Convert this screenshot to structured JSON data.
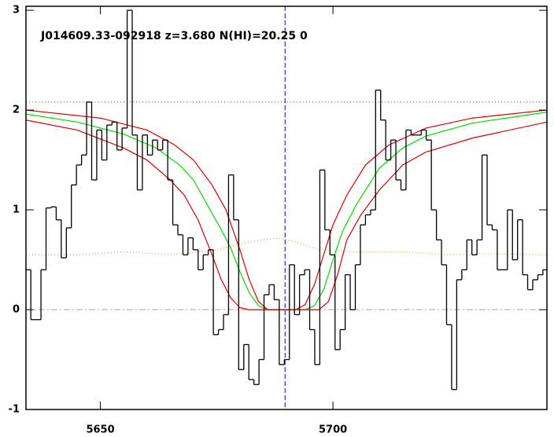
{
  "chart_data": {
    "type": "step",
    "title": "J014609.33-092918 z=3.680 N(HI)=20.25 0",
    "xlim": [
      5634,
      5746
    ],
    "ylim": [
      -1,
      3.04
    ],
    "xticks": [
      5650,
      5700
    ],
    "yticks": [
      -1,
      0,
      1,
      2,
      3
    ],
    "x": [
      5634.5,
      5635.59,
      5636.68,
      5637.77,
      5638.86,
      5639.95,
      5641.04,
      5642.13,
      5643.22,
      5644.31,
      5645.4,
      5646.49,
      5647.58,
      5648.67,
      5649.76,
      5650.85,
      5651.94,
      5653.03,
      5654.12,
      5655.21,
      5656.3,
      5657.39,
      5658.48,
      5659.57,
      5660.66,
      5661.75,
      5662.84,
      5663.93,
      5665.02,
      5666.11,
      5667.2,
      5668.29,
      5669.38,
      5670.47,
      5671.56,
      5672.65,
      5673.74,
      5674.83,
      5675.92,
      5677.01,
      5678.1,
      5679.19,
      5680.28,
      5681.37,
      5682.46,
      5683.55,
      5684.64,
      5685.73,
      5686.82,
      5687.91,
      5689.0,
      5690.09,
      5691.18,
      5692.27,
      5693.36,
      5694.45,
      5695.54,
      5696.63,
      5697.72,
      5698.81,
      5699.9,
      5700.99,
      5702.08,
      5703.17,
      5704.26,
      5705.35,
      5706.44,
      5707.53,
      5708.62,
      5709.71,
      5710.8,
      5711.89,
      5712.98,
      5714.07,
      5715.16,
      5716.25,
      5717.34,
      5718.43,
      5719.52,
      5720.61,
      5721.7,
      5722.79,
      5723.88,
      5724.97,
      5726.06,
      5727.15,
      5728.24,
      5729.33,
      5730.42,
      5731.51,
      5732.6,
      5733.69,
      5734.78,
      5735.87,
      5736.96,
      5738.05,
      5739.14,
      5740.23,
      5741.32,
      5742.41,
      5743.5,
      5744.59,
      5745.68
    ],
    "values": [
      0.4,
      -0.1,
      -0.1,
      0.4,
      1.02,
      1.03,
      0.9,
      0.52,
      0.82,
      1.25,
      1.45,
      1.55,
      2.08,
      1.3,
      1.8,
      1.5,
      1.85,
      1.88,
      1.6,
      1.82,
      3.0,
      1.75,
      1.2,
      1.75,
      1.55,
      1.7,
      1.6,
      1.7,
      1.3,
      0.85,
      0.75,
      0.55,
      0.72,
      0.6,
      0.4,
      0.55,
      0.6,
      -0.25,
      -0.2,
      -0.05,
      1.35,
      0.9,
      -0.6,
      -0.35,
      -0.7,
      -0.75,
      -0.5,
      0.15,
      0.25,
      0.1,
      -0.55,
      -0.5,
      0.45,
      -0.05,
      0.35,
      0.4,
      -0.2,
      -0.55,
      1.4,
      0.8,
      0.55,
      -0.4,
      -0.2,
      0.35,
      0.0,
      0.45,
      0.85,
      0.95,
      1.0,
      2.2,
      1.9,
      1.5,
      1.7,
      1.3,
      1.2,
      1.8,
      1.75,
      1.75,
      1.8,
      1.7,
      1.0,
      0.7,
      0.45,
      -0.15,
      -0.8,
      0.3,
      0.4,
      0.7,
      0.55,
      0.7,
      1.55,
      0.85,
      0.8,
      0.4,
      0.4,
      1.0,
      0.5,
      0.9,
      0.35,
      0.2,
      0.3,
      0.35,
      0.4
    ],
    "color": "#000000",
    "series": [
      {
        "color": "#ff8c00",
        "dash": "1 3",
        "x": [
          5634,
          5645,
          5655,
          5665,
          5675,
          5682,
          5688,
          5692,
          5697,
          5705,
          5715,
          5725,
          5735,
          5746
        ],
        "values": [
          0.55,
          0.55,
          0.58,
          0.55,
          0.6,
          0.68,
          0.72,
          0.68,
          0.6,
          0.58,
          0.58,
          0.55,
          0.56,
          0.55
        ]
      },
      {
        "color": "#00dd00",
        "x": [
          5634,
          5645,
          5655,
          5662,
          5667,
          5670,
          5673,
          5676,
          5678,
          5680,
          5682,
          5684,
          5686,
          5694,
          5696,
          5698,
          5700,
          5702,
          5705,
          5710,
          5715,
          5720,
          5730,
          5746
        ],
        "values": [
          1.96,
          1.88,
          1.76,
          1.62,
          1.45,
          1.3,
          1.05,
          0.8,
          0.62,
          0.38,
          0.17,
          0.04,
          0,
          0,
          0.04,
          0.2,
          0.5,
          0.78,
          1.05,
          1.42,
          1.62,
          1.74,
          1.87,
          1.98
        ]
      },
      {
        "color": "#dd0000",
        "x": [
          5634,
          5650,
          5660,
          5666,
          5670,
          5674,
          5677,
          5680,
          5682,
          5684,
          5686,
          5692,
          5694,
          5696,
          5698,
          5700,
          5703,
          5707,
          5712,
          5720,
          5730,
          5746
        ],
        "values": [
          2.0,
          1.92,
          1.8,
          1.65,
          1.5,
          1.25,
          1.0,
          0.6,
          0.3,
          0.08,
          0,
          0,
          0.05,
          0.25,
          0.55,
          0.85,
          1.15,
          1.45,
          1.65,
          1.82,
          1.92,
          2.0
        ]
      },
      {
        "color": "#dd0000",
        "x": [
          5634,
          5645,
          5655,
          5660,
          5665,
          5668,
          5671,
          5674,
          5676,
          5678,
          5680,
          5682,
          5697,
          5699,
          5701,
          5703,
          5706,
          5710,
          5715,
          5720,
          5730,
          5746
        ],
        "values": [
          1.9,
          1.8,
          1.62,
          1.5,
          1.3,
          1.15,
          0.9,
          0.55,
          0.3,
          0.12,
          0.02,
          0,
          0,
          0.08,
          0.35,
          0.7,
          0.95,
          1.2,
          1.45,
          1.58,
          1.72,
          1.88
        ]
      }
    ],
    "hlines": [
      {
        "value": 2.08,
        "color": "#cc00cc",
        "dash": "1 3"
      },
      {
        "value": 0,
        "color": "#aaaaaa",
        "dash": "8 3 2 3"
      }
    ],
    "vlines": [
      {
        "value": 5689.7,
        "color": "#0000ee",
        "dash": "6 3"
      }
    ]
  }
}
